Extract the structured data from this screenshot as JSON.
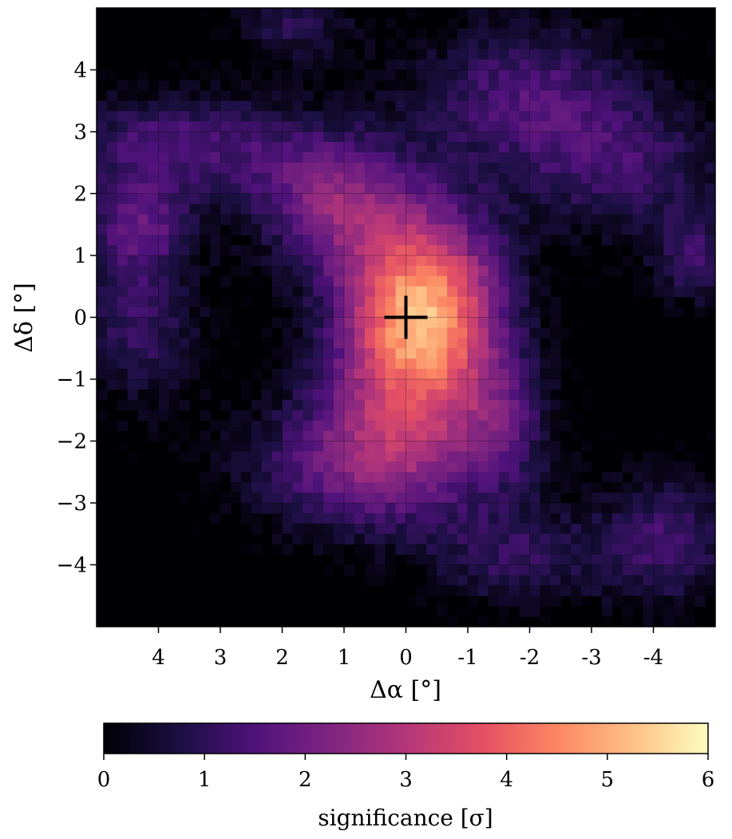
{
  "chart_data": {
    "type": "heatmap",
    "title": "",
    "xlabel": "Δα [°]",
    "ylabel": "Δδ [°]",
    "xlim": [
      5,
      -5
    ],
    "ylim": [
      -5,
      5
    ],
    "x_axis_reversed": true,
    "xticks": [
      4,
      3,
      2,
      1,
      0,
      -1,
      -2,
      -3,
      -4
    ],
    "xtick_labels": [
      "4",
      "3",
      "2",
      "1",
      "0",
      "-1",
      "-2",
      "-3",
      "-4"
    ],
    "yticks": [
      4,
      3,
      2,
      1,
      0,
      -1,
      -2,
      -3,
      -4
    ],
    "ytick_labels": [
      "4",
      "3",
      "2",
      "1",
      "0",
      "−1",
      "−2",
      "−3",
      "−4"
    ],
    "grid": true,
    "colormap": "magma",
    "colorbar": {
      "orientation": "horizontal",
      "placement": "bottom",
      "label": "significance [σ]",
      "range": [
        0,
        6
      ],
      "ticks": [
        0,
        1,
        2,
        3,
        4,
        5,
        6
      ],
      "tick_labels": [
        "0",
        "1",
        "2",
        "3",
        "4",
        "5",
        "6"
      ]
    },
    "marker": {
      "symbol": "+",
      "x": 0,
      "y": 0,
      "color": "#000000"
    },
    "peak": {
      "x": -0.4,
      "y": 0.3,
      "value": 6
    },
    "blobs": [
      {
        "x": -0.3,
        "y": 0.2,
        "sx": 0.9,
        "sy": 1.1,
        "amp": 4.6
      },
      {
        "x": 0.0,
        "y": -1.2,
        "sx": 1.0,
        "sy": 1.2,
        "amp": 1.8
      },
      {
        "x": 1.2,
        "y": 1.9,
        "sx": 0.9,
        "sy": 0.8,
        "amp": 2.4
      },
      {
        "x": 0.8,
        "y": -2.4,
        "sx": 1.3,
        "sy": 0.8,
        "amp": 2.0
      },
      {
        "x": 3.7,
        "y": 2.8,
        "sx": 1.4,
        "sy": 0.6,
        "amp": 1.8
      },
      {
        "x": 4.3,
        "y": 1.5,
        "sx": 0.6,
        "sy": 0.5,
        "amp": 1.6
      },
      {
        "x": 4.3,
        "y": 0.0,
        "sx": 0.7,
        "sy": 1.0,
        "amp": 1.5
      },
      {
        "x": -1.9,
        "y": 3.6,
        "sx": 1.3,
        "sy": 0.9,
        "amp": 1.7
      },
      {
        "x": -3.6,
        "y": 2.4,
        "sx": 1.2,
        "sy": 0.8,
        "amp": 1.4
      },
      {
        "x": -4.7,
        "y": 0.9,
        "sx": 0.5,
        "sy": 0.5,
        "amp": 1.5
      },
      {
        "x": -4.2,
        "y": -3.6,
        "sx": 0.8,
        "sy": 0.8,
        "amp": 1.6
      },
      {
        "x": -1.8,
        "y": -3.9,
        "sx": 1.0,
        "sy": 0.6,
        "amp": 1.3
      },
      {
        "x": 1.8,
        "y": 4.7,
        "sx": 0.7,
        "sy": 0.4,
        "amp": 1.2
      },
      {
        "x": -1.6,
        "y": -1.8,
        "sx": 0.6,
        "sy": 0.8,
        "amp": 1.3
      }
    ]
  }
}
